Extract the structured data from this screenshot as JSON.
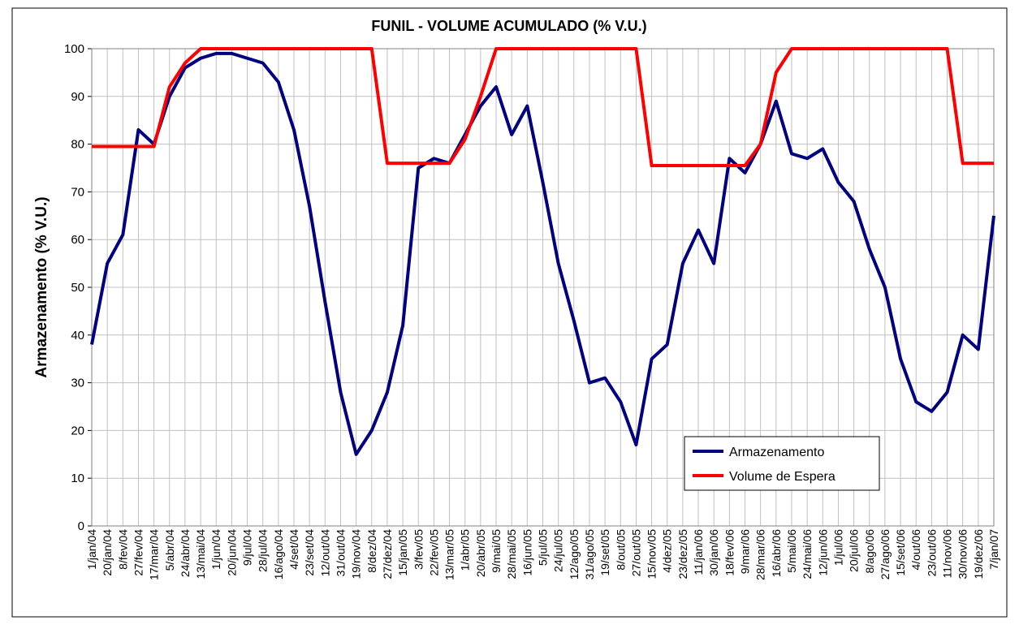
{
  "chart_data": {
    "type": "line",
    "title": "FUNIL - VOLUME ACUMULADO (% V.U.)",
    "y_label": "Armazenamento (% V.U.)",
    "categories": [
      "1/jan/04",
      "20/jan/04",
      "8/fev/04",
      "27/fev/04",
      "17/mar/04",
      "5/abr/04",
      "24/abr/04",
      "13/mai/04",
      "1/jun/04",
      "20/jun/04",
      "9/jul/04",
      "28/jul/04",
      "16/ago/04",
      "4/set/04",
      "23/set/04",
      "12/out/04",
      "31/out/04",
      "19/nov/04",
      "8/dez/04",
      "27/dez/04",
      "15/jan/05",
      "3/fev/05",
      "22/fev/05",
      "13/mar/05",
      "1/abr/05",
      "20/abr/05",
      "9/mai/05",
      "28/mai/05",
      "16/jun/05",
      "5/jul/05",
      "24/jul/05",
      "12/ago/05",
      "31/ago/05",
      "19/set/05",
      "8/out/05",
      "27/out/05",
      "15/nov/05",
      "4/dez/05",
      "23/dez/05",
      "11/jan/06",
      "30/jan/06",
      "18/fev/06",
      "9/mar/06",
      "28/mar/06",
      "16/abr/06",
      "5/mai/06",
      "24/mai/06",
      "12/jun/06",
      "1/jul/06",
      "20/jul/06",
      "8/ago/06",
      "27/ago/06",
      "15/set/06",
      "4/out/06",
      "23/out/06",
      "11/nov/06",
      "30/nov/06",
      "19/dez/06",
      "7/jan/07"
    ],
    "series": [
      {
        "name": "Armazenamento",
        "color": "#000080",
        "values": [
          38,
          55,
          61,
          83,
          80,
          90,
          96,
          98,
          99,
          99,
          98,
          97,
          93,
          83,
          67,
          47,
          28,
          15,
          20,
          28,
          42,
          75,
          77,
          76,
          82,
          88,
          92,
          82,
          88,
          72,
          55,
          43,
          30,
          31,
          26,
          17,
          35,
          38,
          55,
          62,
          55,
          77,
          74,
          80,
          89,
          78,
          77,
          79,
          72,
          68,
          58,
          50,
          35,
          26,
          24,
          28,
          40,
          37,
          65
        ]
      },
      {
        "name": "Volume de Espera",
        "color": "#ff0000",
        "values": [
          79.5,
          79.5,
          79.5,
          79.5,
          79.5,
          92,
          97,
          100,
          100,
          100,
          100,
          100,
          100,
          100,
          100,
          100,
          100,
          100,
          100,
          76,
          76,
          76,
          76,
          76,
          81,
          90,
          100,
          100,
          100,
          100,
          100,
          100,
          100,
          100,
          100,
          100,
          75.5,
          75.5,
          75.5,
          75.5,
          75.5,
          75.5,
          75.5,
          80,
          95,
          100,
          100,
          100,
          100,
          100,
          100,
          100,
          100,
          100,
          100,
          100,
          76,
          76,
          76
        ]
      }
    ],
    "ylim": [
      0,
      100
    ],
    "yticks": [
      0,
      10,
      20,
      30,
      40,
      50,
      60,
      70,
      80,
      90,
      100
    ],
    "grid": true,
    "legend": "lower right"
  }
}
